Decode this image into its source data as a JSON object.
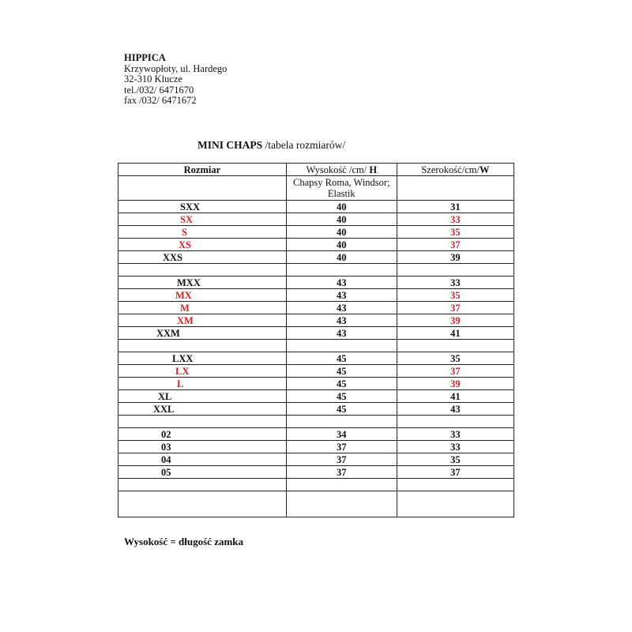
{
  "company": {
    "name": "HIPPICA",
    "address1": "Krzywopłoty, ul. Hardego",
    "address2": "32-310 Klucze",
    "tel": "tel./032/ 6471670",
    "fax": "fax /032/ 6471672"
  },
  "title": {
    "bold": "MINI CHAPS",
    "rest": " /tabela rozmiarów/"
  },
  "table": {
    "headers": {
      "size": "Rozmiar",
      "height_prefix": "Wysokość /cm/ ",
      "height_letter": "H",
      "width_prefix": "Szerokość/cm/",
      "width_letter": "W"
    },
    "subheader": "Chapsy Roma, Windsor; Elastik",
    "highlight_color": "#d42027",
    "rows": [
      {
        "size": "SXX",
        "height": "40",
        "width": "31",
        "red": false
      },
      {
        "size": "SX",
        "height": "40",
        "width": "33",
        "red": true
      },
      {
        "size": "S",
        "height": "40",
        "width": "35",
        "red": true
      },
      {
        "size": "XS",
        "height": "40",
        "width": "37",
        "red": true
      },
      {
        "size": "XXS",
        "height": "40",
        "width": "39",
        "red": false
      },
      {
        "size": "",
        "height": "",
        "width": "",
        "red": false
      },
      {
        "size": "MXX",
        "height": "43",
        "width": "33",
        "red": false
      },
      {
        "size": "MX",
        "height": "43",
        "width": "35",
        "red": true
      },
      {
        "size": "M",
        "height": "43",
        "width": "37",
        "red": true
      },
      {
        "size": "XM",
        "height": "43",
        "width": "39",
        "red": true
      },
      {
        "size": "XXM",
        "height": "43",
        "width": "41",
        "red": false
      },
      {
        "size": "",
        "height": "",
        "width": "",
        "red": false
      },
      {
        "size": "LXX",
        "height": "45",
        "width": "35",
        "red": false
      },
      {
        "size": "LX",
        "height": "45",
        "width": "37",
        "red": true
      },
      {
        "size": "L",
        "height": "45",
        "width": "39",
        "red": true
      },
      {
        "size": "XL",
        "height": "45",
        "width": "41",
        "red": false
      },
      {
        "size": "XXL",
        "height": "45",
        "width": "43",
        "red": false
      },
      {
        "size": "",
        "height": "",
        "width": "",
        "red": false
      },
      {
        "size": "02",
        "height": "34",
        "width": "33",
        "red": false
      },
      {
        "size": "03",
        "height": "37",
        "width": "33",
        "red": false
      },
      {
        "size": "04",
        "height": "37",
        "width": "35",
        "red": false
      },
      {
        "size": "05",
        "height": "37",
        "width": "37",
        "red": false
      },
      {
        "size": "",
        "height": "",
        "width": "",
        "red": false
      },
      {
        "size": "",
        "height": "",
        "width": "",
        "red": false
      }
    ]
  },
  "footer": "Wysokość = długość zamka"
}
